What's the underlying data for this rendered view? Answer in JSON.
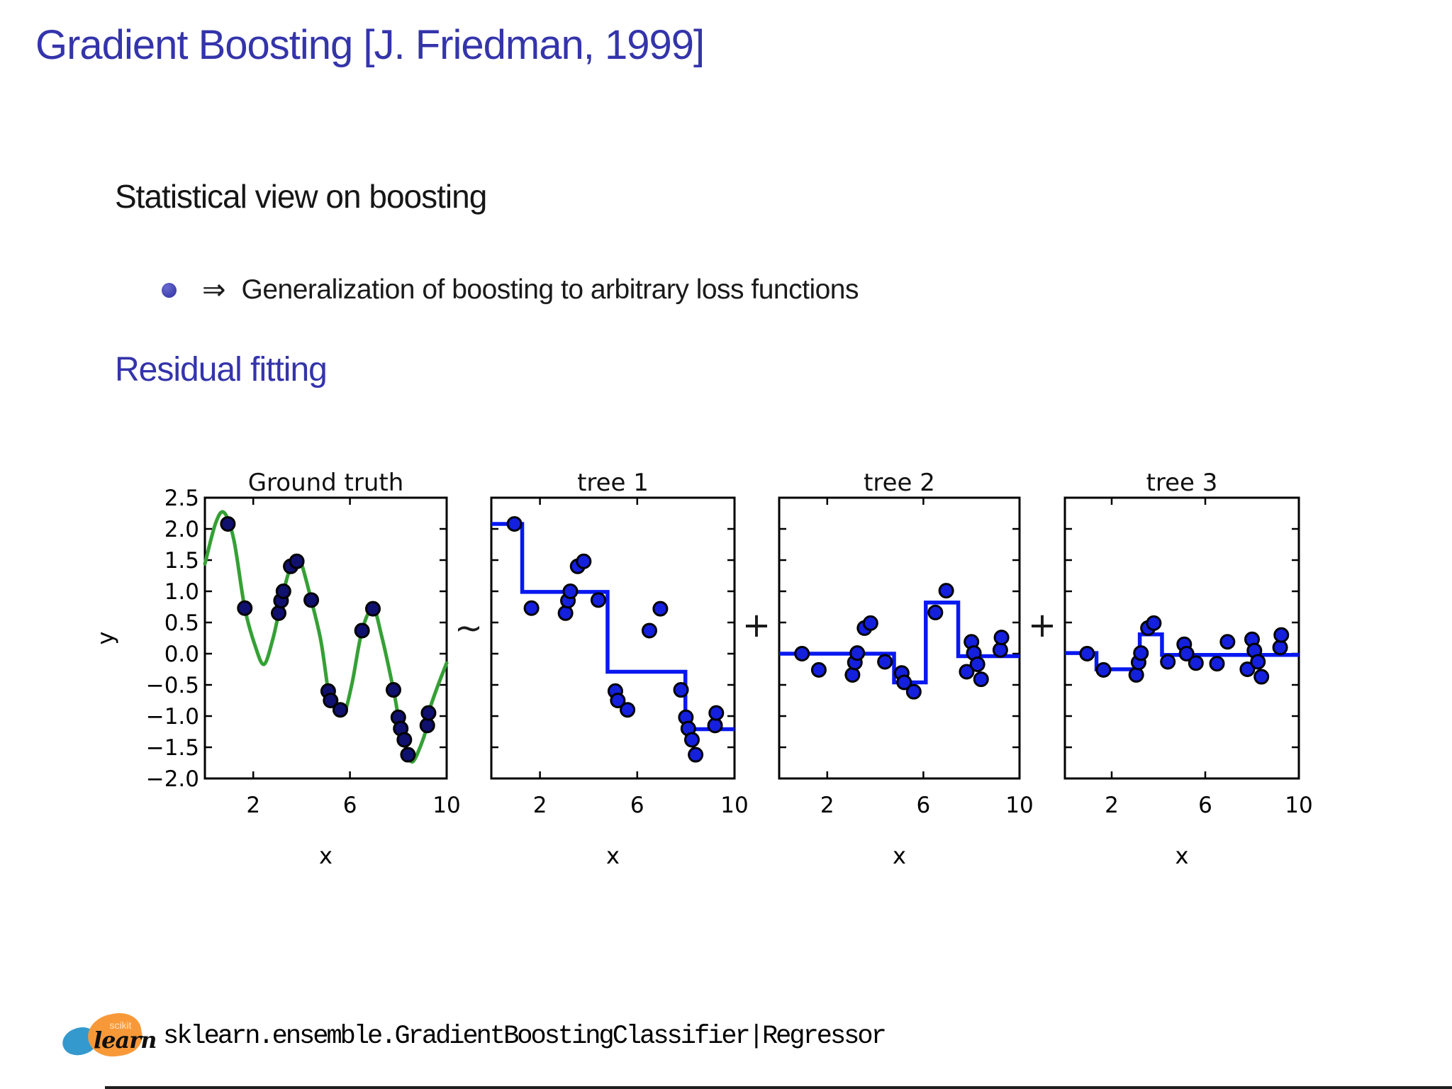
{
  "slide": {
    "title": "Gradient Boosting [J. Friedman, 1999]",
    "heading": "Statistical view on boosting",
    "bullet": {
      "arrow": "⇒",
      "text": "Generalization of boosting to arbitrary loss functions"
    },
    "section_heading": "Residual fitting",
    "accent_color": "#3434ab"
  },
  "footer": {
    "logo": {
      "scikit": "scikit",
      "learn": "learn",
      "orange": "#f89939",
      "blue": "#3499cd"
    },
    "code": "sklearn.ensemble.GradientBoostingClassifier|Regressor"
  },
  "figure": {
    "operators": [
      "∼",
      "+",
      "+"
    ],
    "colors": {
      "curve_green": "#35a035",
      "step_blue": "#0818f0",
      "dot_navy": "#10106e",
      "dot_blue": "#1420dd",
      "axis_black": "#000000"
    }
  },
  "chart_data": [
    {
      "type": "line+scatter",
      "title": "Ground truth",
      "xlabel": "x",
      "ylabel": "y",
      "xlim": [
        0,
        10
      ],
      "ylim": [
        -2.0,
        2.5
      ],
      "xticks": [
        2,
        6,
        10
      ],
      "xticklabels": [
        "2",
        "6",
        "10"
      ],
      "yticks": [
        2.5,
        2.0,
        1.5,
        1.0,
        0.5,
        0.0,
        -0.5,
        -1.0,
        -1.5,
        -2.0
      ],
      "yticklabels": [
        "2.5",
        "2.0",
        "1.5",
        "1.0",
        "0.5",
        "0.0",
        "−0.5",
        "−1.0",
        "−1.5",
        "−2.0"
      ],
      "curve_points": [
        [
          0,
          1.44
        ],
        [
          0.45,
          2.1
        ],
        [
          0.8,
          2.26
        ],
        [
          1.2,
          1.82
        ],
        [
          1.65,
          0.73
        ],
        [
          2.1,
          0.1
        ],
        [
          2.45,
          -0.17
        ],
        [
          2.8,
          0.22
        ],
        [
          3.05,
          0.65
        ],
        [
          3.15,
          0.85
        ],
        [
          3.25,
          1.0
        ],
        [
          3.55,
          1.4
        ],
        [
          3.8,
          1.48
        ],
        [
          3.95,
          1.5
        ],
        [
          4.4,
          0.86
        ],
        [
          4.8,
          0.2
        ],
        [
          5.1,
          -0.6
        ],
        [
          5.2,
          -0.75
        ],
        [
          5.6,
          -0.9
        ],
        [
          5.78,
          -0.95
        ],
        [
          6.1,
          -0.45
        ],
        [
          6.5,
          0.37
        ],
        [
          6.95,
          0.73
        ],
        [
          7.3,
          0.3
        ],
        [
          7.8,
          -0.58
        ],
        [
          8.0,
          -1.02
        ],
        [
          8.1,
          -1.2
        ],
        [
          8.25,
          -1.38
        ],
        [
          8.4,
          -1.62
        ],
        [
          8.6,
          -1.73
        ],
        [
          8.9,
          -1.5
        ],
        [
          9.2,
          -1.15
        ],
        [
          9.25,
          -0.95
        ],
        [
          9.6,
          -0.55
        ],
        [
          10,
          -0.15
        ]
      ],
      "scatter_x": [
        0.95,
        1.65,
        3.05,
        3.15,
        3.25,
        3.55,
        3.8,
        4.4,
        5.1,
        5.2,
        5.6,
        6.5,
        6.95,
        7.8,
        8.0,
        8.1,
        8.25,
        8.4,
        9.2,
        9.25
      ],
      "scatter_y": [
        2.08,
        0.73,
        0.65,
        0.85,
        1.0,
        1.4,
        1.48,
        0.86,
        -0.6,
        -0.75,
        -0.9,
        0.37,
        0.72,
        -0.58,
        -1.02,
        -1.2,
        -1.38,
        -1.62,
        -1.15,
        -0.95
      ],
      "dot_color_key": "dot_navy"
    },
    {
      "type": "step+scatter",
      "title": "tree 1",
      "xlabel": "x",
      "xlim": [
        0,
        10
      ],
      "ylim": [
        -2.0,
        2.5
      ],
      "xticks": [
        2,
        6,
        10
      ],
      "xticklabels": [
        "2",
        "6",
        "10"
      ],
      "yticks": [
        2.5,
        2.0,
        1.5,
        1.0,
        0.5,
        0.0,
        -0.5,
        -1.0,
        -1.5,
        -2.0
      ],
      "yticklabels": [],
      "step_breaks": [
        0,
        1.27,
        4.78,
        7.98,
        10
      ],
      "step_levels": [
        2.08,
        0.99,
        -0.29,
        -1.21
      ],
      "scatter_x": [
        0.95,
        1.65,
        3.05,
        3.15,
        3.25,
        3.55,
        3.8,
        4.4,
        5.1,
        5.2,
        5.6,
        6.5,
        6.95,
        7.8,
        8.0,
        8.1,
        8.25,
        8.4,
        9.2,
        9.25
      ],
      "scatter_y": [
        2.08,
        0.73,
        0.65,
        0.85,
        1.0,
        1.4,
        1.48,
        0.86,
        -0.6,
        -0.75,
        -0.9,
        0.37,
        0.72,
        -0.58,
        -1.02,
        -1.2,
        -1.38,
        -1.62,
        -1.15,
        -0.95
      ],
      "dot_color_key": "dot_blue"
    },
    {
      "type": "step+scatter",
      "title": "tree 2",
      "xlabel": "x",
      "xlim": [
        0,
        10
      ],
      "ylim": [
        -2.0,
        2.5
      ],
      "xticks": [
        2,
        6,
        10
      ],
      "xticklabels": [
        "2",
        "6",
        "10"
      ],
      "yticks": [
        2.5,
        2.0,
        1.5,
        1.0,
        0.5,
        0.0,
        -0.5,
        -1.0,
        -1.5,
        -2.0
      ],
      "yticklabels": [],
      "step_breaks": [
        0,
        4.78,
        6.1,
        7.45,
        10
      ],
      "step_levels": [
        0.0,
        -0.46,
        0.82,
        -0.04
      ],
      "scatter_x": [
        0.95,
        1.65,
        3.05,
        3.15,
        3.25,
        3.55,
        3.8,
        4.4,
        5.1,
        5.2,
        5.6,
        6.5,
        6.95,
        7.8,
        8.0,
        8.1,
        8.25,
        8.4,
        9.2,
        9.25
      ],
      "scatter_y": [
        0.0,
        -0.26,
        -0.34,
        -0.14,
        0.01,
        0.41,
        0.49,
        -0.13,
        -0.31,
        -0.46,
        -0.61,
        0.66,
        1.01,
        -0.29,
        0.19,
        0.01,
        -0.17,
        -0.41,
        0.06,
        0.26
      ],
      "dot_color_key": "dot_blue"
    },
    {
      "type": "step+scatter",
      "title": "tree 3",
      "xlabel": "x",
      "xlim": [
        0,
        10
      ],
      "ylim": [
        -2.0,
        2.5
      ],
      "xticks": [
        2,
        6,
        10
      ],
      "xticklabels": [
        "2",
        "6",
        "10"
      ],
      "yticks": [
        2.5,
        2.0,
        1.5,
        1.0,
        0.5,
        0.0,
        -0.5,
        -1.0,
        -1.5,
        -2.0
      ],
      "yticklabels": [],
      "step_breaks": [
        0,
        1.35,
        3.2,
        4.15,
        10
      ],
      "step_levels": [
        0.01,
        -0.25,
        0.31,
        -0.02
      ],
      "scatter_x": [
        0.95,
        1.65,
        3.05,
        3.15,
        3.25,
        3.55,
        3.8,
        4.4,
        5.1,
        5.2,
        5.6,
        6.5,
        6.95,
        7.8,
        8.0,
        8.1,
        8.25,
        8.4,
        9.2,
        9.25
      ],
      "scatter_y": [
        0.0,
        -0.26,
        -0.34,
        -0.14,
        0.01,
        0.41,
        0.49,
        -0.13,
        0.15,
        0.0,
        -0.15,
        -0.16,
        0.19,
        -0.25,
        0.23,
        0.05,
        -0.13,
        -0.37,
        0.1,
        0.3
      ],
      "dot_color_key": "dot_blue"
    }
  ]
}
